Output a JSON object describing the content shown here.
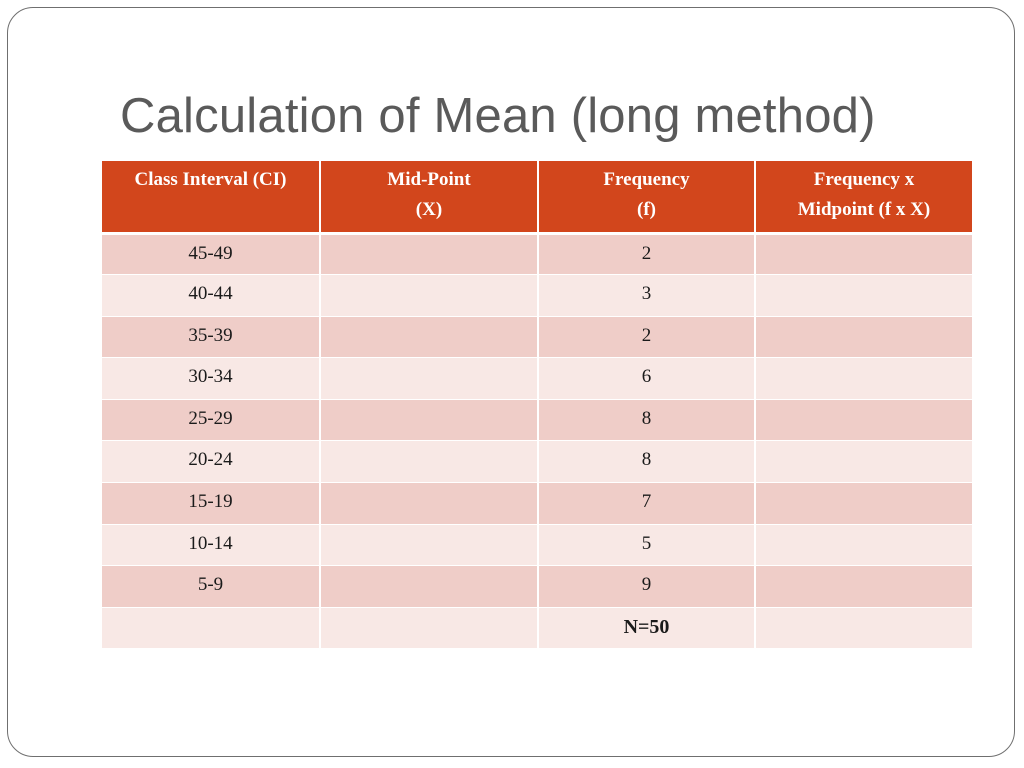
{
  "slide": {
    "title": "Calculation of Mean (long method)"
  },
  "table": {
    "headers": [
      [
        "Class Interval (CI)",
        ""
      ],
      [
        "Mid-Point",
        "(X)"
      ],
      [
        "Frequency",
        "(f)"
      ],
      [
        "Frequency x",
        "Midpoint (f x X)"
      ]
    ],
    "rows": [
      [
        "45-49",
        "",
        "2",
        ""
      ],
      [
        "40-44",
        "",
        "3",
        ""
      ],
      [
        "35-39",
        "",
        "2",
        ""
      ],
      [
        "30-34",
        "",
        "6",
        ""
      ],
      [
        "25-29",
        "",
        "8",
        ""
      ],
      [
        "20-24",
        "",
        "8",
        ""
      ],
      [
        "15-19",
        "",
        "7",
        ""
      ],
      [
        "10-14",
        "",
        "5",
        ""
      ],
      [
        "5-9",
        "",
        "9",
        ""
      ],
      [
        "",
        "",
        "N=50",
        ""
      ]
    ]
  },
  "colors": {
    "header_bg": "#d2461c",
    "row_dark": "#efcdc8",
    "row_light": "#f8e8e5",
    "title": "#5a5a5a"
  }
}
